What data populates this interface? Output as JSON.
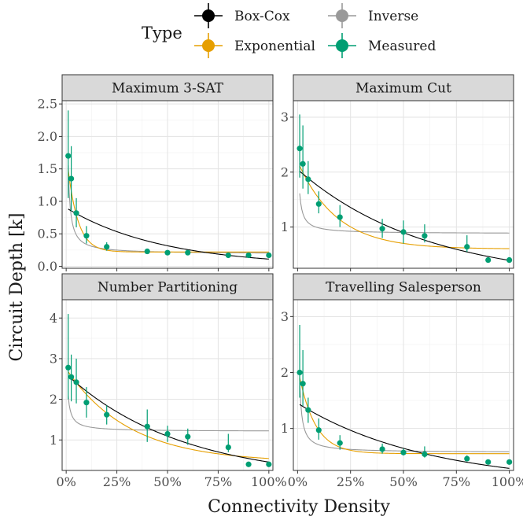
{
  "chart_data": {
    "type": "scatter",
    "xlabel": "Connectivity Density",
    "ylabel": "Circuit Depth [k]",
    "legend": {
      "title": "Type",
      "placement": "top",
      "entries": [
        {
          "label": "Box-Cox",
          "color": "#000000"
        },
        {
          "label": "Exponential",
          "color": "#E69F00"
        },
        {
          "label": "Inverse",
          "color": "#999999"
        },
        {
          "label": "Measured",
          "color": "#009E73"
        }
      ]
    },
    "grid": true,
    "x_tick_labels": [
      "0%",
      "25%",
      "50%",
      "75%",
      "100%"
    ],
    "x_ticks": [
      0,
      25,
      50,
      75,
      100
    ],
    "xlim": [
      -2,
      102
    ],
    "panels": [
      {
        "title": "Maximum 3-SAT",
        "ylim": [
          -0.03,
          2.55
        ],
        "y_ticks": [
          0.0,
          0.5,
          1.0,
          1.5,
          2.0,
          2.5
        ],
        "y_tick_labels": [
          "0.0",
          "0.5",
          "1.0",
          "1.5",
          "2.0",
          "2.5"
        ],
        "measured": {
          "x": [
            1,
            2.5,
            5,
            10,
            20,
            40,
            50,
            60,
            80,
            90,
            100
          ],
          "y": [
            1.7,
            1.35,
            0.82,
            0.47,
            0.3,
            0.23,
            0.21,
            0.21,
            0.17,
            0.17,
            0.17
          ],
          "ymin": [
            1.05,
            0.85,
            0.6,
            0.35,
            0.24,
            0.2,
            0.18,
            0.18,
            0.15,
            0.15,
            0.15
          ],
          "ymax": [
            2.4,
            1.85,
            1.05,
            0.62,
            0.37,
            0.27,
            0.24,
            0.24,
            0.19,
            0.19,
            0.19
          ]
        },
        "fits": {
          "box_cox": {
            "a": 0.0,
            "b": 0.9,
            "c": 0.0209
          },
          "exponential": {
            "a": 0.22,
            "b": 1.55,
            "c": 0.2
          },
          "inverse": {
            "a": 0.19,
            "b": 1.5,
            "d": 0.1
          }
        }
      },
      {
        "title": "Maximum Cut",
        "ylim": [
          0.25,
          3.3
        ],
        "y_ticks": [
          1,
          2,
          3
        ],
        "y_tick_labels": [
          "1",
          "2",
          "3"
        ],
        "measured": {
          "x": [
            1,
            2.5,
            5,
            10,
            20,
            40,
            50,
            60,
            80,
            90,
            100
          ],
          "y": [
            2.43,
            2.15,
            1.87,
            1.42,
            1.18,
            0.97,
            0.91,
            0.84,
            0.64,
            0.4,
            0.4
          ],
          "ymin": [
            1.9,
            1.7,
            1.6,
            1.25,
            1.0,
            0.8,
            0.7,
            0.72,
            0.55,
            0.36,
            0.36
          ],
          "ymax": [
            3.05,
            2.85,
            2.2,
            1.65,
            1.4,
            1.15,
            1.12,
            1.05,
            0.85,
            0.44,
            0.44
          ]
        },
        "fits": {
          "box_cox": {
            "a": 0.0,
            "b": 2.05,
            "c": 0.0165
          },
          "exponential": {
            "a": 0.6,
            "b": 1.6,
            "c": 0.055
          },
          "inverse": {
            "a": 0.88,
            "b": 1.1,
            "d": 0.5
          }
        }
      },
      {
        "title": "Number Partitioning",
        "ylim": [
          0.25,
          4.45
        ],
        "y_ticks": [
          1,
          2,
          3,
          4
        ],
        "y_tick_labels": [
          "1",
          "2",
          "3",
          "4"
        ],
        "measured": {
          "x": [
            1,
            2.5,
            5,
            10,
            20,
            40,
            50,
            60,
            80,
            90,
            100
          ],
          "y": [
            2.78,
            2.55,
            2.42,
            1.92,
            1.62,
            1.33,
            1.15,
            1.08,
            0.82,
            0.4,
            0.4
          ],
          "ymin": [
            2.0,
            1.95,
            1.9,
            1.55,
            1.38,
            0.95,
            0.95,
            0.88,
            0.7,
            0.36,
            0.36
          ],
          "ymax": [
            4.1,
            3.1,
            3.0,
            2.3,
            1.85,
            1.75,
            1.35,
            1.28,
            1.15,
            0.44,
            0.44
          ]
        },
        "fits": {
          "box_cox": {
            "a": 0.0,
            "b": 2.62,
            "c": 0.0175
          },
          "exponential": {
            "a": 0.45,
            "b": 2.3,
            "c": 0.032
          },
          "inverse": {
            "a": 1.21,
            "b": 1.3,
            "d": 0.5
          }
        }
      },
      {
        "title": "Travelling Salesperson",
        "ylim": [
          0.25,
          3.3
        ],
        "y_ticks": [
          1,
          2,
          3
        ],
        "y_tick_labels": [
          "1",
          "2",
          "3"
        ],
        "measured": {
          "x": [
            1,
            2.5,
            5,
            10,
            20,
            40,
            50,
            60,
            80,
            90,
            100
          ],
          "y": [
            2.0,
            1.8,
            1.33,
            0.97,
            0.74,
            0.63,
            0.57,
            0.54,
            0.46,
            0.4,
            0.4
          ],
          "ymin": [
            1.55,
            1.4,
            1.1,
            0.8,
            0.62,
            0.55,
            0.52,
            0.48,
            0.42,
            0.37,
            0.37
          ],
          "ymax": [
            2.85,
            2.4,
            1.55,
            1.18,
            0.88,
            0.73,
            0.64,
            0.68,
            0.52,
            0.43,
            0.43
          ]
        },
        "fits": {
          "box_cox": {
            "a": 0.0,
            "b": 1.45,
            "c": 0.0162
          },
          "exponential": {
            "a": 0.55,
            "b": 1.55,
            "c": 0.13
          },
          "inverse": {
            "a": 0.57,
            "b": 1.4,
            "d": 0.1
          }
        }
      }
    ]
  }
}
